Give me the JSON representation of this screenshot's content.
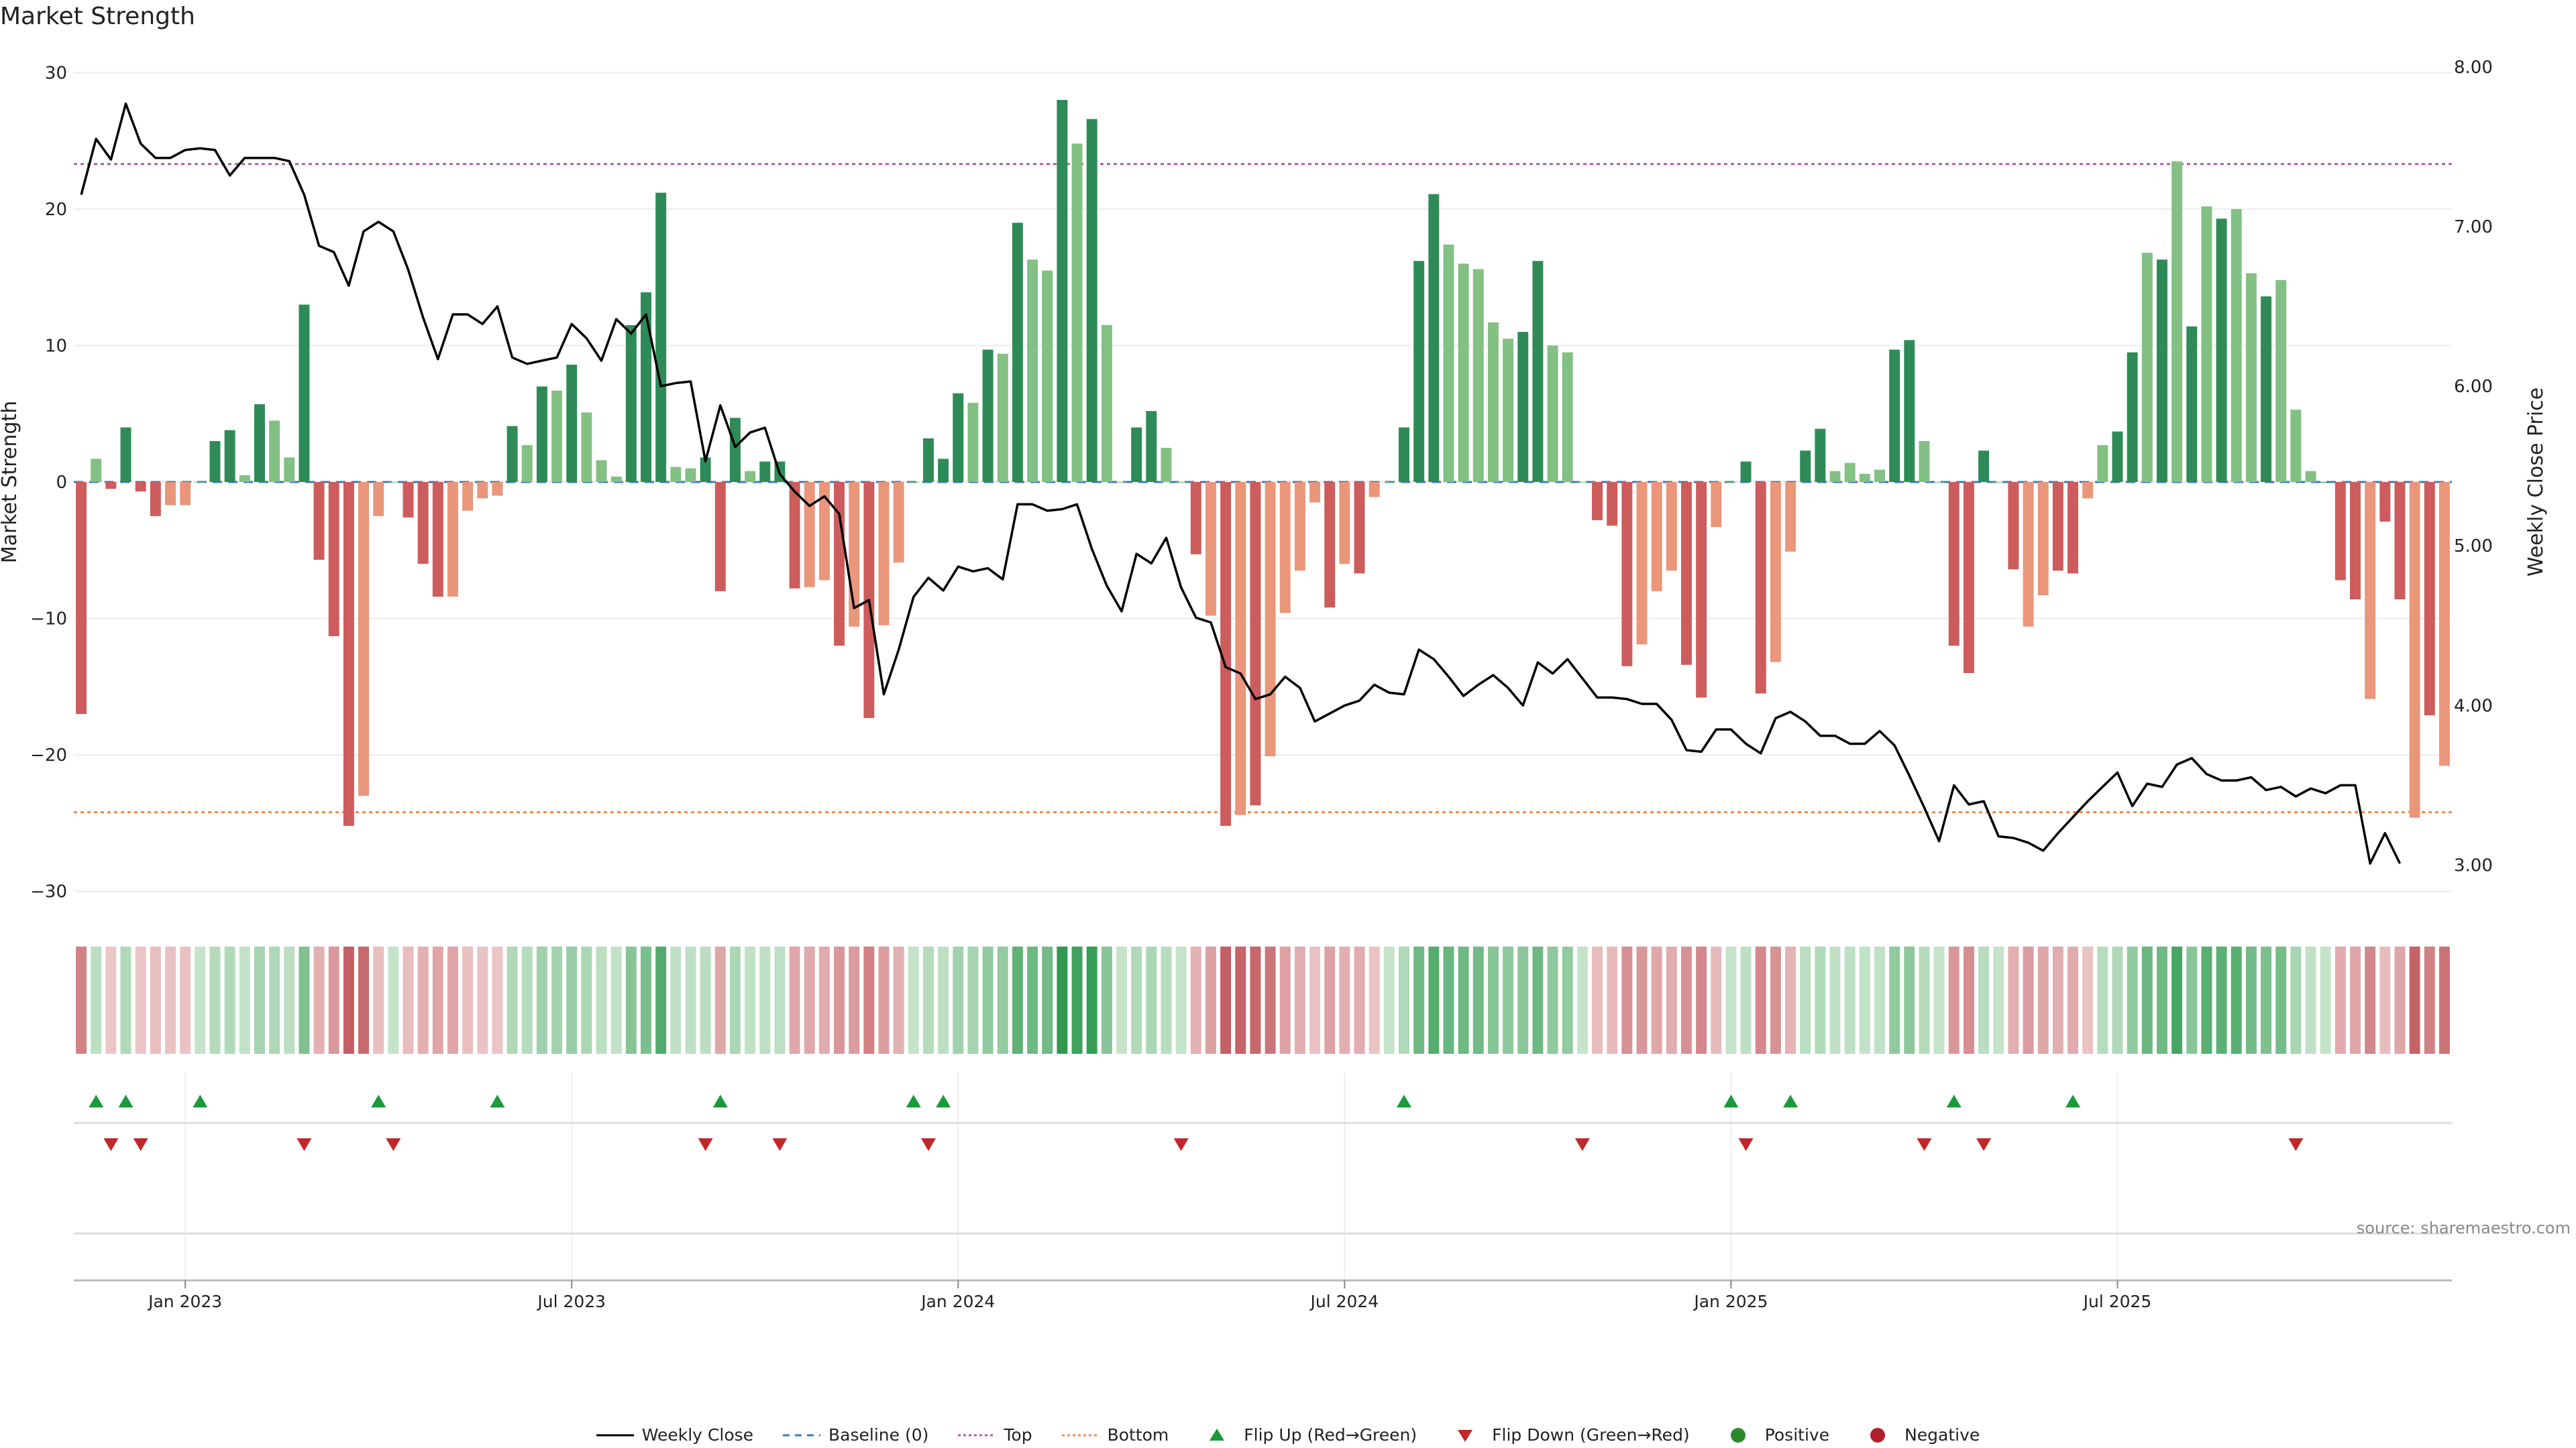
{
  "title": "Market Strength",
  "source": "source: sharemaestro.com",
  "colors": {
    "strong_pos": "#2e8b57",
    "weak_pos": "#82c084",
    "strong_neg": "#cd5c5c",
    "weak_neg": "#e9967a",
    "price_line": "#000000",
    "baseline": "#3a7ab8",
    "top": "#b05ab0",
    "bottom": "#f08a4b",
    "flip_up": "#1a9a3a",
    "flip_down": "#c0282a",
    "positive": "#2a8a2a",
    "negative": "#b0202a"
  },
  "chart_data": {
    "type": "bar",
    "title": "Market Strength",
    "ylabel": "Market Strength",
    "y2label": "Weekly Close Price",
    "ylim": [
      -31,
      31
    ],
    "y2lim": [
      2.75,
      8.05
    ],
    "y_ticks": [
      30,
      20,
      10,
      0,
      -10,
      -20,
      -30
    ],
    "y2_ticks": [
      8.0,
      7.0,
      6.0,
      5.0,
      4.0,
      3.0
    ],
    "y2_tick_labels": [
      "8.00",
      "7.00",
      "6.00",
      "5.00",
      "4.00",
      "3.00"
    ],
    "x_tick_labels": [
      "Jan 2023",
      "Jul 2023",
      "Jan 2024",
      "Jul 2024",
      "Jan 2025",
      "Jul 2025"
    ],
    "x_tick_weeks": [
      7.5,
      33.5,
      59.5,
      85.5,
      111.5,
      137.5
    ],
    "top_threshold": 23.3,
    "bottom_threshold": -24.2,
    "strength_values": [
      -17,
      1.7,
      -0.5,
      4,
      -0.7,
      -2.5,
      -1.7,
      -1.7,
      0,
      3,
      3.8,
      0.5,
      5.7,
      4.5,
      1.8,
      13,
      -5.7,
      -11.3,
      -25.2,
      -23,
      -2.5,
      0,
      -2.6,
      -6,
      -8.4,
      -8.4,
      -2.1,
      -1.2,
      -1,
      4.1,
      2.7,
      7,
      6.7,
      8.6,
      5.1,
      1.6,
      0.4,
      11.5,
      13.9,
      21.2,
      1.1,
      1,
      1.8,
      -8,
      4.7,
      0.8,
      1.5,
      1.5,
      -7.8,
      -7.7,
      -7.2,
      -12,
      -10.6,
      -17.3,
      -10.5,
      -5.9,
      0,
      3.2,
      1.7,
      6.5,
      5.8,
      9.7,
      9.4,
      19,
      16.3,
      15.5,
      28,
      24.8,
      26.6,
      11.5,
      0,
      4,
      5.2,
      2.5,
      0,
      -5.3,
      -9.8,
      -25.2,
      -24.4,
      -23.7,
      -20.1,
      -9.6,
      -6.5,
      -1.5,
      -9.2,
      -6,
      -6.7,
      -1.1,
      0,
      4,
      16.2,
      21.1,
      17.4,
      16,
      15.6,
      11.7,
      10.5,
      11,
      16.2,
      10,
      9.5,
      0,
      -2.8,
      -3.2,
      -13.5,
      -11.9,
      -8,
      -6.5,
      -13.4,
      -15.8,
      -3.3,
      0,
      1.5,
      -15.5,
      -13.2,
      -5.1,
      2.3,
      3.9,
      0.8,
      1.4,
      0.6,
      0.9,
      9.7,
      10.4,
      3,
      0,
      -12,
      -14,
      2.3,
      0,
      -6.4,
      -10.6,
      -8.3,
      -6.5,
      -6.7,
      -1.2,
      2.7,
      3.7,
      9.5,
      16.8,
      16.3,
      23.5,
      11.4,
      20.2,
      19.3,
      20,
      15.3,
      13.6,
      14.8,
      5.3,
      0.8,
      0,
      -7.2,
      -8.6,
      -15.9,
      -2.9,
      -8.6,
      -24.6,
      -17.1,
      -20.8
    ],
    "bar_shades": [
      "s",
      "w",
      "s",
      "s",
      "s",
      "s",
      "w",
      "w",
      "w",
      "s",
      "s",
      "w",
      "s",
      "w",
      "w",
      "s",
      "s",
      "s",
      "s",
      "w",
      "w",
      "w",
      "s",
      "s",
      "s",
      "w",
      "w",
      "w",
      "w",
      "s",
      "w",
      "s",
      "w",
      "s",
      "w",
      "w",
      "w",
      "s",
      "s",
      "s",
      "w",
      "w",
      "s",
      "s",
      "s",
      "w",
      "s",
      "s",
      "s",
      "w",
      "w",
      "s",
      "w",
      "s",
      "w",
      "w",
      "w",
      "s",
      "s",
      "s",
      "w",
      "s",
      "w",
      "s",
      "w",
      "w",
      "s",
      "w",
      "s",
      "w",
      "w",
      "s",
      "s",
      "w",
      "w",
      "s",
      "w",
      "s",
      "w",
      "s",
      "w",
      "w",
      "w",
      "w",
      "s",
      "w",
      "s",
      "w",
      "w",
      "s",
      "s",
      "s",
      "w",
      "w",
      "w",
      "w",
      "w",
      "s",
      "s",
      "w",
      "w",
      "w",
      "s",
      "s",
      "s",
      "w",
      "w",
      "w",
      "s",
      "s",
      "w",
      "w",
      "s",
      "s",
      "w",
      "w",
      "s",
      "s",
      "w",
      "w",
      "w",
      "w",
      "s",
      "s",
      "w",
      "w",
      "s",
      "s",
      "s",
      "w",
      "s",
      "w",
      "w",
      "s",
      "s",
      "w",
      "w",
      "s",
      "s",
      "w",
      "s",
      "w",
      "s",
      "w",
      "s",
      "w",
      "w",
      "s",
      "w",
      "w",
      "w",
      "s",
      "s",
      "s",
      "w",
      "s",
      "s",
      "w",
      "s"
    ],
    "price_values": [
      7.2,
      7.55,
      7.42,
      7.77,
      7.52,
      7.43,
      7.43,
      7.48,
      7.49,
      7.48,
      7.32,
      7.43,
      7.43,
      7.43,
      7.41,
      7.2,
      6.88,
      6.84,
      6.63,
      6.97,
      7.03,
      6.97,
      6.73,
      6.43,
      6.17,
      6.45,
      6.45,
      6.39,
      6.5,
      6.18,
      6.14,
      6.16,
      6.18,
      6.39,
      6.3,
      6.16,
      6.42,
      6.33,
      6.45,
      6,
      6.02,
      6.03,
      5.53,
      5.88,
      5.62,
      5.71,
      5.74,
      5.45,
      5.34,
      5.25,
      5.31,
      5.2,
      4.61,
      4.66,
      4.07,
      4.35,
      4.68,
      4.8,
      4.72,
      4.87,
      4.84,
      4.86,
      4.79,
      5.26,
      5.26,
      5.22,
      5.23,
      5.26,
      4.98,
      4.75,
      4.59,
      4.95,
      4.89,
      5.05,
      4.74,
      4.55,
      4.52,
      4.24,
      4.2,
      4.04,
      4.07,
      4.18,
      4.11,
      3.9,
      3.95,
      4,
      4.03,
      4.13,
      4.08,
      4.07,
      4.35,
      4.29,
      4.18,
      4.06,
      4.13,
      4.19,
      4.11,
      4,
      4.27,
      4.2,
      4.29,
      4.17,
      4.05,
      4.05,
      4.04,
      4.01,
      4.01,
      3.91,
      3.72,
      3.71,
      3.85,
      3.85,
      3.76,
      3.7,
      3.92,
      3.96,
      3.9,
      3.81,
      3.81,
      3.76,
      3.76,
      3.84,
      3.75,
      3.56,
      3.36,
      3.15,
      3.5,
      3.38,
      3.4,
      3.18,
      3.17,
      3.14,
      3.09,
      3.2,
      3.3,
      3.4,
      3.49,
      3.58,
      3.37,
      3.51,
      3.49,
      3.63,
      3.67,
      3.57,
      3.53,
      3.53,
      3.55,
      3.47,
      3.49,
      3.43,
      3.48,
      3.45,
      3.5,
      3.5,
      3.01,
      3.2,
      3.01
    ],
    "flip_up_weeks": [
      1,
      3,
      8,
      20,
      28,
      43,
      56,
      58,
      89,
      111,
      115,
      126,
      134
    ],
    "flip_down_weeks": [
      2,
      4,
      15,
      21,
      42,
      47,
      57,
      74,
      101,
      112,
      124,
      128,
      149
    ],
    "legend": [
      "Weekly Close",
      "Baseline (0)",
      "Top",
      "Bottom",
      "Flip Up (Red→Green)",
      "Flip Down (Green→Red)",
      "Positive",
      "Negative"
    ]
  }
}
